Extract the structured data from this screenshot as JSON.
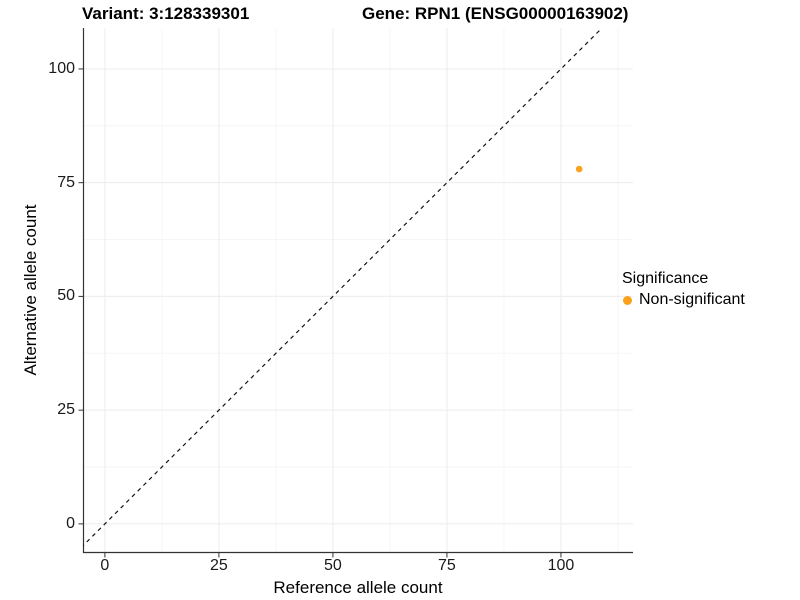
{
  "header": {
    "title_left": "Variant: 3:128339301",
    "title_right": "Gene: RPN1 (ENSG00000163902)"
  },
  "axes": {
    "x_label": "Reference allele count",
    "y_label": "Alternative allele count"
  },
  "legend": {
    "title": "Significance",
    "position": "right",
    "items": [
      {
        "label": "Non-significant",
        "color": "#FAA21B"
      }
    ]
  },
  "chart_data": {
    "type": "scatter",
    "title": "Variant: 3:128339301  Gene: RPN1 (ENSG00000163902)",
    "xlabel": "Reference allele count",
    "ylabel": "Alternative allele count",
    "x_ticks": [
      0,
      25,
      50,
      75,
      100
    ],
    "y_ticks": [
      0,
      25,
      50,
      75,
      100
    ],
    "xlim": [
      -4.8,
      115.8
    ],
    "ylim": [
      -6.4,
      109.0
    ],
    "grid": "major+minor",
    "grid_major_color": "#ECECEC",
    "grid_minor_color": "#F6F6F6",
    "axis_line_color": "#333333",
    "background": "#FFFFFF",
    "series": [
      {
        "name": "Non-significant",
        "color": "#FAA21B",
        "point_radius": 3.3,
        "points": [
          {
            "x": 104,
            "y": 78
          }
        ]
      }
    ],
    "reference_line": {
      "type": "identity",
      "slope": 1,
      "intercept": 0,
      "style": "dashed",
      "color": "#141414"
    }
  }
}
